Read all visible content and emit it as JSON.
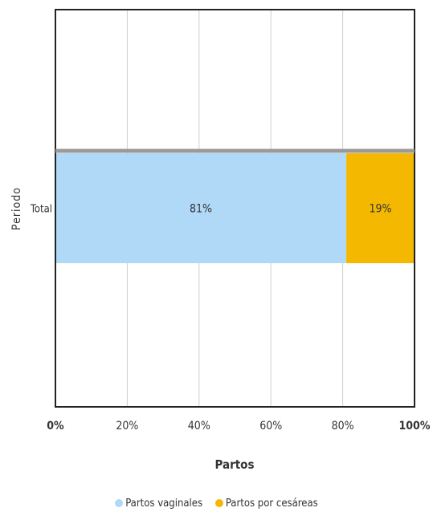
{
  "chart_data": {
    "type": "bar",
    "orientation": "horizontal",
    "stacked": true,
    "categories": [
      "Total"
    ],
    "series": [
      {
        "name": "Partos vaginales",
        "values": [
          81
        ],
        "label": "81%",
        "color": "#b0d8f7"
      },
      {
        "name": "Partos por cesáreas",
        "values": [
          19
        ],
        "label": "19%",
        "color": "#f5b800"
      }
    ],
    "xlabel": "Partos",
    "ylabel": "Periodo",
    "xlim": [
      0,
      100
    ],
    "xticks": [
      "0%",
      "20%",
      "40%",
      "60%",
      "80%",
      "100%"
    ],
    "grid": true,
    "legend_position": "bottom"
  }
}
